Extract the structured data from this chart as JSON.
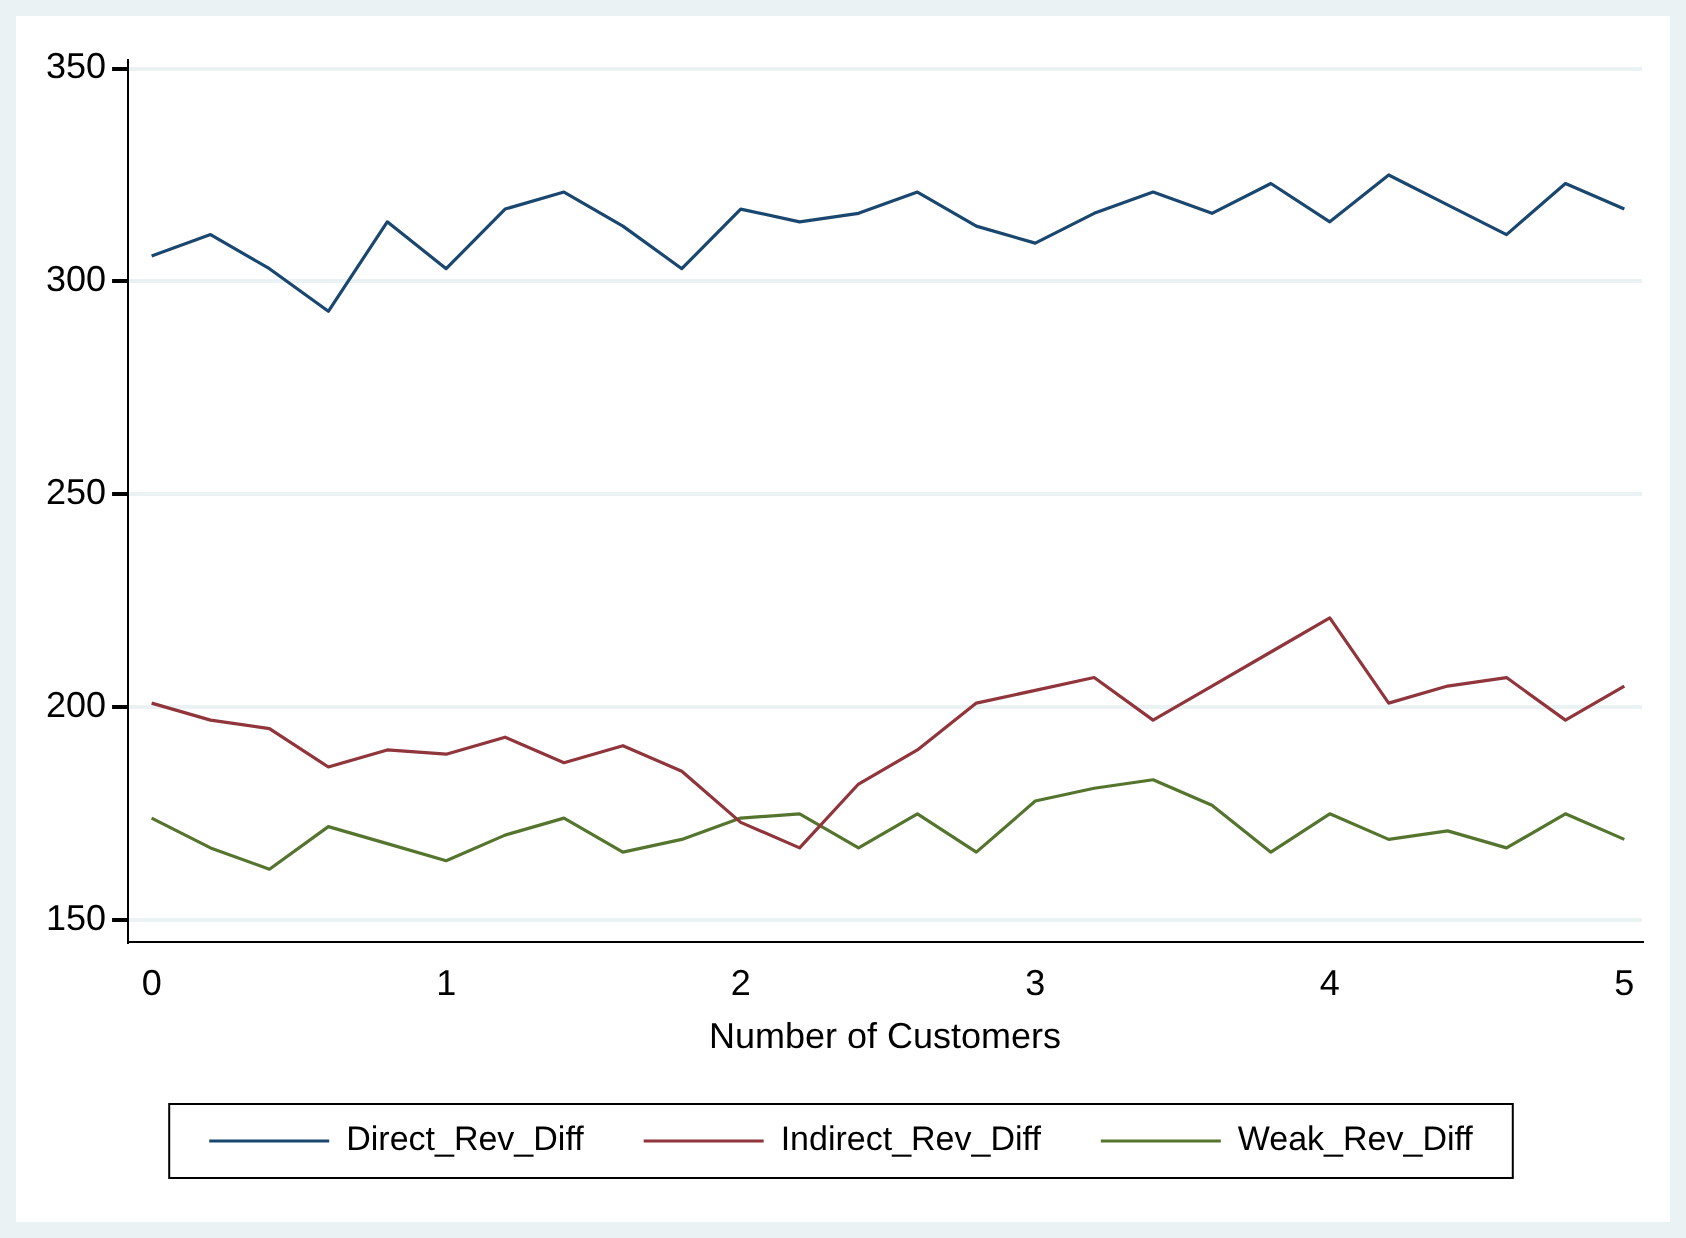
{
  "chart_data": {
    "type": "line",
    "xlabel": "Number of Customers",
    "x": [
      0,
      0.2,
      0.4,
      0.6,
      0.8,
      1,
      1.2,
      1.4,
      1.6,
      1.8,
      2,
      2.2,
      2.4,
      2.6,
      2.8,
      3,
      3.2,
      3.4,
      3.6,
      3.8,
      4,
      4.2,
      4.4,
      4.6,
      4.8,
      5
    ],
    "series": [
      {
        "name": "Direct_Rev_Diff",
        "color": "#1a476f",
        "values": [
          306,
          311,
          303,
          293,
          314,
          303,
          317,
          321,
          313,
          303,
          317,
          314,
          316,
          321,
          313,
          309,
          316,
          321,
          316,
          323,
          314,
          325,
          318,
          311,
          323,
          317
        ]
      },
      {
        "name": "Indirect_Rev_Diff",
        "color": "#90353b",
        "values": [
          201,
          197,
          195,
          186,
          190,
          189,
          193,
          187,
          191,
          185,
          173,
          167,
          182,
          190,
          201,
          204,
          207,
          197,
          205,
          213,
          221,
          201,
          205,
          207,
          197,
          205
        ]
      },
      {
        "name": "Weak_Rev_Diff",
        "color": "#55752f",
        "values": [
          174,
          167,
          162,
          172,
          168,
          164,
          170,
          174,
          166,
          169,
          174,
          175,
          167,
          175,
          166,
          178,
          181,
          183,
          177,
          166,
          175,
          169,
          171,
          167,
          175,
          169
        ]
      }
    ],
    "xlim": [
      -0.08,
      5.06
    ],
    "xticks": [
      0,
      1,
      2,
      3,
      4,
      5
    ],
    "ylim": [
      145,
      352
    ],
    "yticks": [
      150,
      200,
      250,
      300,
      350
    ],
    "grid": "y",
    "legend": "bottom",
    "marker": "none",
    "line_style": "solid"
  }
}
